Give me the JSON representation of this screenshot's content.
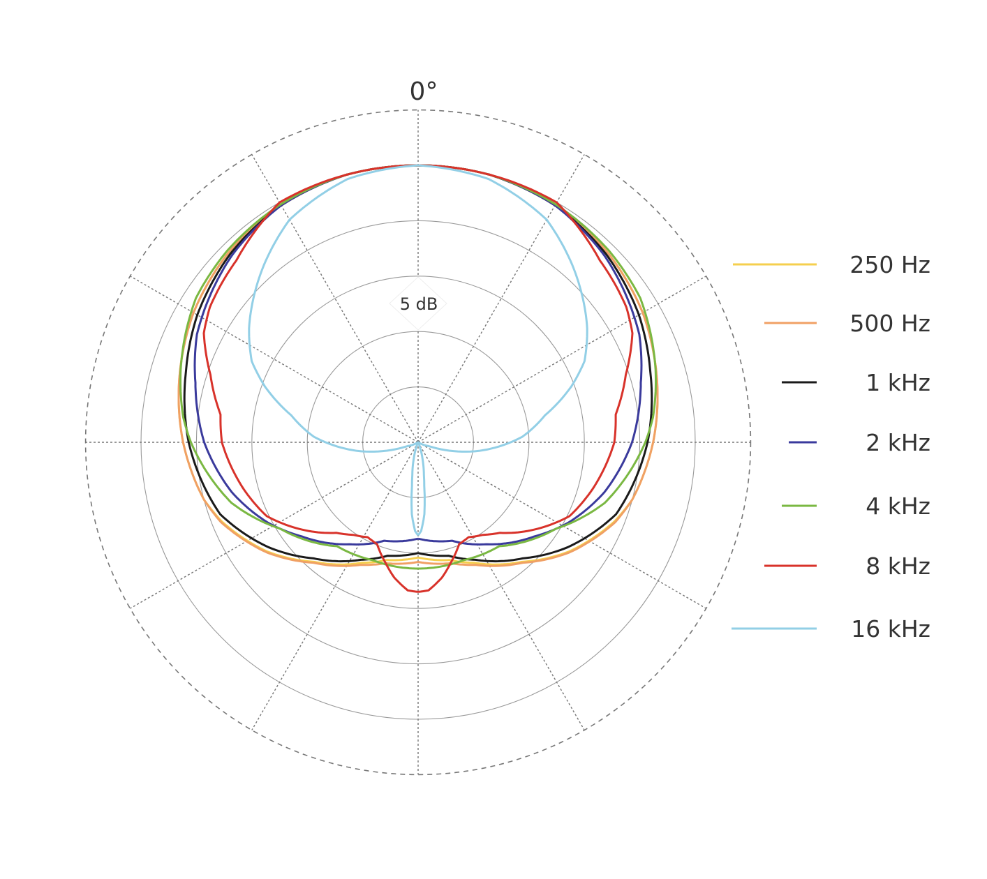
{
  "chart_data": {
    "type": "polar",
    "title": "",
    "angle_label": "0°",
    "scale_label": "5 dB",
    "radial_range_db": [
      -25,
      5
    ],
    "ring_step_db": 5,
    "spoke_step_deg": 30,
    "grid": true,
    "symmetric": true,
    "legend_position": "right",
    "series": [
      {
        "name": "250 Hz",
        "color": "#f5cf4e",
        "angles": [
          0,
          15,
          30,
          45,
          60,
          75,
          90,
          105,
          112,
          126,
          139,
          155,
          165,
          180
        ],
        "db": [
          0,
          0,
          -0.3,
          -0.8,
          -1.6,
          -2.7,
          -3.8,
          -5.0,
          -5.9,
          -8.2,
          -10.7,
          -13.0,
          -14.0,
          -14.6
        ]
      },
      {
        "name": "500 Hz",
        "color": "#f0a064",
        "angles": [
          0,
          15,
          30,
          45,
          60,
          75,
          90,
          105,
          112,
          126,
          139,
          155,
          165,
          180
        ],
        "db": [
          0,
          0,
          -0.3,
          -0.8,
          -1.6,
          -2.7,
          -3.8,
          -5.0,
          -5.8,
          -8.1,
          -10.6,
          -12.8,
          -13.7,
          -14.2
        ]
      },
      {
        "name": "1 kHz",
        "color": "#1a1a1a",
        "angles": [
          0,
          15,
          30,
          45,
          60,
          73,
          90,
          110,
          125,
          138,
          154,
          165,
          180
        ],
        "db": [
          0,
          0,
          -0.3,
          -1.0,
          -2.0,
          -3.1,
          -4.3,
          -6.0,
          -8.5,
          -10.9,
          -13.2,
          -14.4,
          -15.0
        ]
      },
      {
        "name": "2 kHz",
        "color": "#3a3a9c",
        "angles": [
          0,
          15,
          30,
          45,
          64,
          75,
          83,
          90,
          105,
          118,
          129,
          146,
          161,
          180
        ],
        "db": [
          0,
          0,
          -0.3,
          -1.2,
          -2.8,
          -4.2,
          -5.0,
          -5.7,
          -7.6,
          -9.6,
          -11.5,
          -13.9,
          -15.6,
          -16.3
        ]
      },
      {
        "name": "4 kHz",
        "color": "#7ab842",
        "angles": [
          0,
          15,
          30,
          45,
          57,
          73,
          84,
          90,
          108,
          122,
          142,
          159,
          180
        ],
        "db": [
          0,
          0,
          -0.2,
          -0.6,
          -1.1,
          -2.6,
          -3.7,
          -4.5,
          -7.3,
          -10.3,
          -13.1,
          -13.6,
          -13.6
        ]
      },
      {
        "name": "8 kHz",
        "color": "#d8322a",
        "angles": [
          0,
          15,
          30,
          45,
          57,
          63,
          72,
          82,
          90,
          105,
          116,
          127,
          138,
          145,
          152,
          158,
          162,
          165,
          170,
          176,
          180
        ],
        "db": [
          0,
          0,
          0,
          -1.8,
          -2.6,
          -3.3,
          -5.3,
          -7.0,
          -7.3,
          -8.7,
          -9.8,
          -11.9,
          -14.0,
          -14.8,
          -15.3,
          -15.1,
          -14.3,
          -13.7,
          -12.6,
          -11.6,
          -11.5
        ]
      },
      {
        "name": "16 kHz",
        "color": "#92cfe6",
        "angles": [
          0,
          15,
          30,
          41,
          56,
          64,
          70,
          78,
          87,
          99,
          110,
          120,
          155,
          160,
          165,
          170,
          172,
          175,
          178,
          180
        ],
        "db": [
          0,
          -0.4,
          -1.8,
          -3.8,
          -6.6,
          -8.3,
          -10.3,
          -13.3,
          -15.6,
          -19.8,
          -24,
          -25,
          -25,
          -24.5,
          -23.5,
          -22,
          -21,
          -18.5,
          -17,
          -16.6
        ]
      }
    ]
  }
}
